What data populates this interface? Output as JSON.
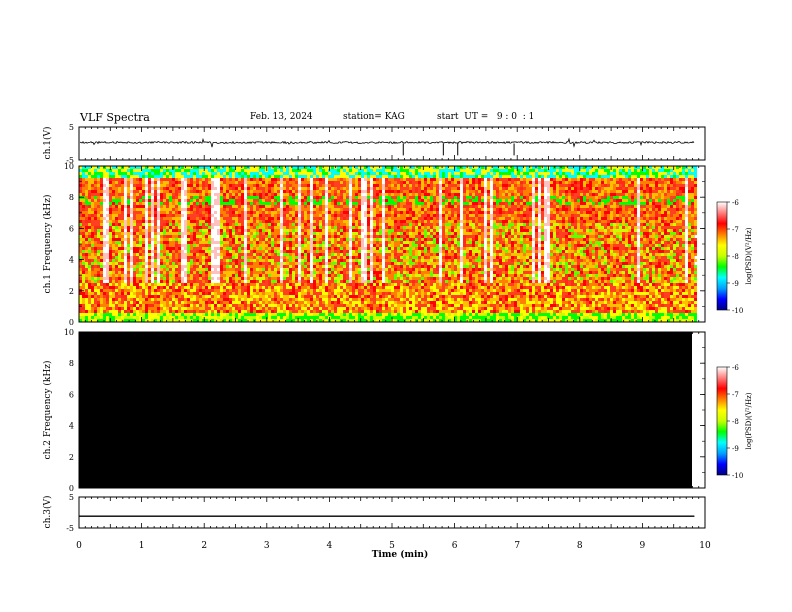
{
  "header": {
    "title": "VLF Spectra",
    "date": "Feb. 13, 2024",
    "station": "station= KAG",
    "start": "start  UT =   9 : 0  : 1"
  },
  "colorbar": {
    "label": "log(PSD)(V²/Hz)",
    "ticks": [
      "-6",
      "-7",
      "-8",
      "-9",
      "-10"
    ],
    "colors": [
      "#000080",
      "#0000ff",
      "#00a0ff",
      "#00ffff",
      "#00ff00",
      "#c8ff00",
      "#ffff00",
      "#ff8000",
      "#ff0000",
      "#ff8080",
      "#ffffff"
    ]
  },
  "chart_data": [
    {
      "type": "line",
      "name": "ch1-waveform",
      "ylabel": "ch.1(V)",
      "ylim": [
        -5,
        5
      ],
      "yticks": [
        "5",
        "-5"
      ],
      "baseline": 0
    },
    {
      "type": "heatmap",
      "name": "ch1-spectrogram",
      "ylabel": "ch.1 Frequency (kHz)",
      "ylim": [
        0,
        10
      ],
      "yticks": [
        "0",
        "2",
        "4",
        "6",
        "8",
        "10"
      ],
      "colorbar_range": [
        -10,
        -6
      ]
    },
    {
      "type": "heatmap",
      "name": "ch2-spectrogram",
      "ylabel": "ch.2 Frequency (kHz)",
      "ylim": [
        0,
        10
      ],
      "yticks": [
        "0",
        "2",
        "4",
        "6",
        "8",
        "10"
      ],
      "colorbar_range": [
        -10,
        -6
      ],
      "fill": "#000000"
    },
    {
      "type": "line",
      "name": "ch3-waveform",
      "ylabel": "ch.3(V)",
      "ylim": [
        -5,
        5
      ],
      "yticks": [
        "5",
        "-5"
      ],
      "x": [
        0,
        9.83
      ],
      "y": [
        -1.2,
        -1.2
      ]
    }
  ],
  "xaxis": {
    "label": "Time  (min)",
    "ticks": [
      "0",
      "1",
      "2",
      "3",
      "4",
      "5",
      "6",
      "7",
      "8",
      "9",
      "10"
    ],
    "xlim": [
      0,
      10
    ],
    "data_end": 9.83
  }
}
